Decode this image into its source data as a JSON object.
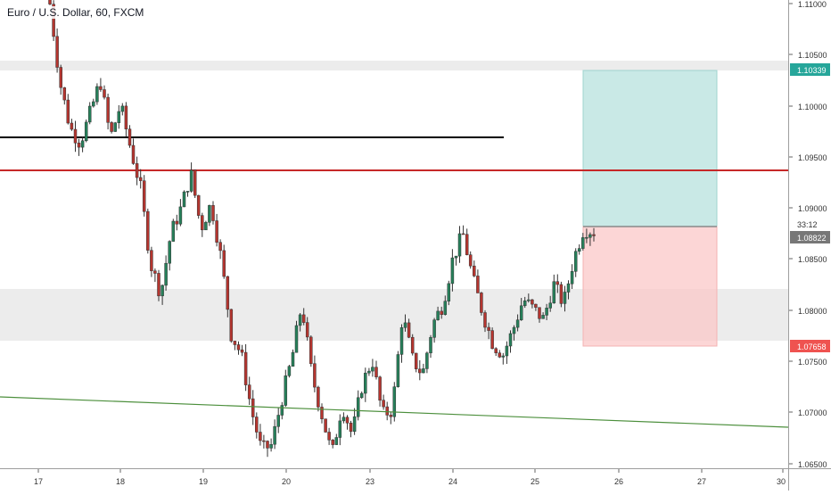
{
  "window": {
    "title": "Euro / U.S. Dollar, 60, FXCM"
  },
  "colors": {
    "up_candle": "#26805a",
    "down_candle": "#b5352f",
    "wick": "#333333",
    "black_line": "#000000",
    "red_line": "#c62828",
    "green_trend": "#4c8f3c",
    "support_zone": "#e9e9e9",
    "target_zone": "#b2dfdb",
    "stop_zone": "#fbc8c8",
    "target_label_bg": "#26a69a",
    "stop_label_bg": "#ef5350",
    "last_price_label_bg": "#777777"
  },
  "price_axis": {
    "labels": [
      "1.11000",
      "1.10500",
      "1.10000",
      "1.09500",
      "1.09000",
      "1.08500",
      "1.08000",
      "1.07500",
      "1.07000",
      "1.06500"
    ],
    "target_label": "1.10339",
    "countdown": "33:12",
    "last_price": "1.08822",
    "stop_label": "1.07658"
  },
  "time_axis": {
    "labels": [
      "17",
      "18",
      "19",
      "20",
      "23",
      "24",
      "25",
      "26",
      "27",
      "30"
    ]
  },
  "chart_data": {
    "type": "candlestick",
    "title": "Euro / U.S. Dollar, 60, FXCM",
    "ylim": [
      1.0647,
      1.1112
    ],
    "x_ticks": [
      "17",
      "18",
      "19",
      "20",
      "23",
      "24",
      "25",
      "26",
      "27",
      "30"
    ],
    "close_path": [
      [
        0,
        1.1108
      ],
      [
        1,
        1.103
      ],
      [
        2,
        1.0985
      ],
      [
        3,
        1.097
      ],
      [
        4,
        1.1
      ],
      [
        5,
        1.1032
      ],
      [
        6,
        1.0975
      ],
      [
        7,
        1.1008
      ],
      [
        8,
        1.0965
      ],
      [
        9,
        1.0925
      ],
      [
        10,
        1.085
      ],
      [
        11,
        1.082
      ],
      [
        12,
        1.088
      ],
      [
        13,
        1.0905
      ],
      [
        14,
        1.094
      ],
      [
        15,
        1.0885
      ],
      [
        16,
        1.091
      ],
      [
        17,
        1.0855
      ],
      [
        18,
        1.078
      ],
      [
        19,
        1.076
      ],
      [
        20,
        1.0705
      ],
      [
        21,
        1.0665
      ],
      [
        22,
        1.067
      ],
      [
        23,
        1.0715
      ],
      [
        24,
        1.0755
      ],
      [
        25,
        1.081
      ],
      [
        26,
        1.074
      ],
      [
        27,
        1.07
      ],
      [
        28,
        1.066
      ],
      [
        29,
        1.071
      ],
      [
        30,
        1.068
      ],
      [
        31,
        1.073
      ],
      [
        32,
        1.0755
      ],
      [
        33,
        1.07
      ],
      [
        34,
        1.0705
      ],
      [
        35,
        1.08
      ],
      [
        36,
        1.0755
      ],
      [
        37,
        1.074
      ],
      [
        38,
        1.079
      ],
      [
        39,
        1.081
      ],
      [
        40,
        1.0855
      ],
      [
        41,
        1.088
      ],
      [
        42,
        1.0835
      ],
      [
        43,
        1.08
      ],
      [
        44,
        1.077
      ],
      [
        45,
        1.076
      ],
      [
        46,
        1.0785
      ],
      [
        47,
        1.0815
      ],
      [
        48,
        1.0805
      ],
      [
        49,
        1.0795
      ],
      [
        50,
        1.083
      ],
      [
        51,
        1.081
      ],
      [
        52,
        1.0855
      ],
      [
        53,
        1.0885
      ],
      [
        54,
        1.0882
      ]
    ],
    "horizontal_lines": [
      {
        "name": "black-resistance",
        "price": 1.0968
      },
      {
        "name": "red-level",
        "price": 1.0935
      }
    ],
    "zones": [
      {
        "name": "top-band",
        "from": 1.1033,
        "to": 1.1045
      },
      {
        "name": "support-zone",
        "from": 1.077,
        "to": 1.0822
      }
    ],
    "trendline": {
      "start": 1.0716,
      "end": 1.0686
    },
    "position": {
      "entry": 1.08822,
      "target": 1.10339,
      "stop": 1.07658
    }
  }
}
